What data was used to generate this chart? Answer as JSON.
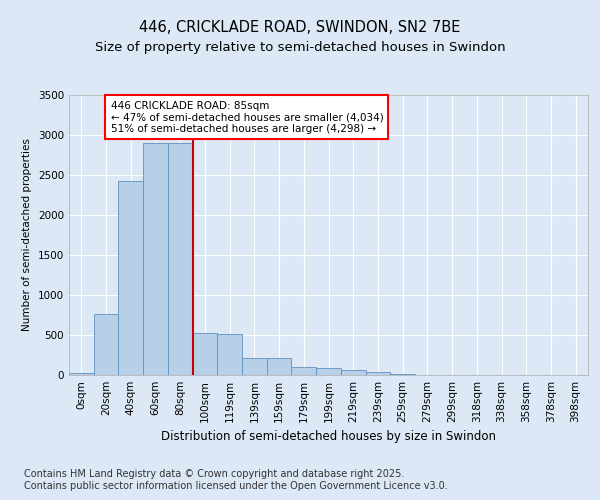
{
  "title1": "446, CRICKLADE ROAD, SWINDON, SN2 7BE",
  "title2": "Size of property relative to semi-detached houses in Swindon",
  "xlabel": "Distribution of semi-detached houses by size in Swindon",
  "ylabel": "Number of semi-detached properties",
  "annotation_title": "446 CRICKLADE ROAD: 85sqm",
  "annotation_line1": "← 47% of semi-detached houses are smaller (4,034)",
  "annotation_line2": "51% of semi-detached houses are larger (4,298) →",
  "footer1": "Contains HM Land Registry data © Crown copyright and database right 2025.",
  "footer2": "Contains public sector information licensed under the Open Government Licence v3.0.",
  "bar_categories": [
    "0sqm",
    "20sqm",
    "40sqm",
    "60sqm",
    "80sqm",
    "100sqm",
    "119sqm",
    "139sqm",
    "159sqm",
    "179sqm",
    "199sqm",
    "219sqm",
    "239sqm",
    "259sqm",
    "279sqm",
    "299sqm",
    "318sqm",
    "338sqm",
    "358sqm",
    "378sqm",
    "398sqm"
  ],
  "bar_values": [
    30,
    760,
    2430,
    2900,
    2900,
    520,
    510,
    215,
    210,
    100,
    85,
    60,
    35,
    10,
    0,
    0,
    0,
    0,
    0,
    0,
    0
  ],
  "bar_color": "#b8cfe8",
  "bar_edge_color": "#6090c0",
  "vline_color": "#cc0000",
  "vline_x_idx": 4,
  "ylim_max": 3500,
  "yticks": [
    0,
    500,
    1000,
    1500,
    2000,
    2500,
    3000,
    3500
  ],
  "bg_color": "#dce8f5",
  "grid_color": "#ffffff",
  "title1_fontsize": 10.5,
  "title2_fontsize": 9.5,
  "axis_fontsize": 7.5,
  "ylabel_fontsize": 7.5,
  "xlabel_fontsize": 8.5,
  "footer_fontsize": 7,
  "annot_fontsize": 7.5
}
